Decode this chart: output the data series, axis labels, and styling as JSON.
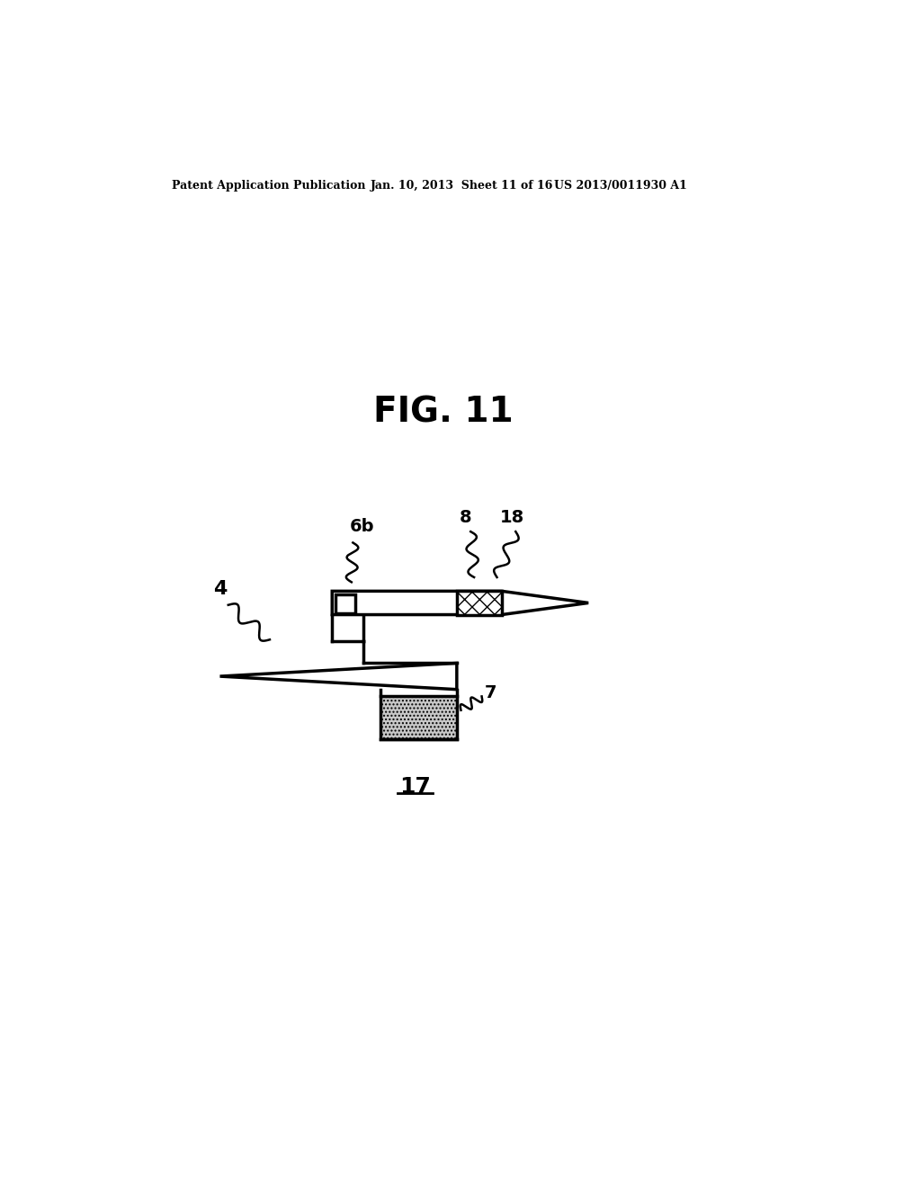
{
  "title": "FIG. 11",
  "label_17": "17",
  "header_left": "Patent Application Publication",
  "header_mid": "Jan. 10, 2013  Sheet 11 of 16",
  "header_right": "US 2013/0011930 A1",
  "label_4": "4",
  "label_6b": "6b",
  "label_7": "7",
  "label_8": "8",
  "label_18": "18",
  "bg_color": "#ffffff",
  "line_color": "#000000"
}
